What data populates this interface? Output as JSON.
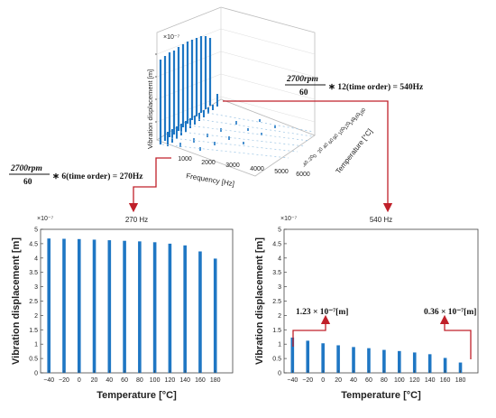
{
  "figure": {
    "waterfall_3d": {
      "scale_label": "×10⁻⁷",
      "zlabel": "Vibration displacement [m]",
      "xlabel": "Frequency [Hz]",
      "ylabel": "Temperature [°C]",
      "x_ticks": [
        "1000",
        "2000",
        "3000",
        "4000",
        "5000",
        "6000"
      ],
      "annotation_270": {
        "prefix": "2700rpm",
        "denominator": "60",
        "suffix": "∗ 6(time order) = 270Hz"
      },
      "annotation_540": {
        "prefix": "2700rpm",
        "denominator": "60",
        "suffix": "∗ 12(time order) = 540Hz"
      }
    },
    "arrow_color": "#c0202a",
    "bar_color": "#1f77c4",
    "annotations": {
      "left_peak": "1.23 × 10⁻⁷[m]",
      "right_peak": "0.36 × 10⁻⁷[m]"
    }
  },
  "chart_data": [
    {
      "type": "bar",
      "title": "270 Hz",
      "scale_label": "×10⁻⁷",
      "xlabel": "Temperature [°C]",
      "ylabel": "Vibration displacement [m]",
      "categories": [
        "-40",
        "-20",
        "0",
        "20",
        "40",
        "60",
        "80",
        "100",
        "120",
        "140",
        "160",
        "180"
      ],
      "values": [
        4.68,
        4.67,
        4.66,
        4.64,
        4.62,
        4.6,
        4.58,
        4.55,
        4.5,
        4.44,
        4.23,
        3.98
      ],
      "ylim": [
        0,
        5
      ],
      "yticks": [
        "0",
        "0.5",
        "1",
        "1.5",
        "2",
        "2.5",
        "3",
        "3.5",
        "4",
        "4.5",
        "5"
      ],
      "grid": false
    },
    {
      "type": "bar",
      "title": "540 Hz",
      "scale_label": "×10⁻⁷",
      "xlabel": "Temperature [°C]",
      "ylabel": "Vibration displacement [m]",
      "categories": [
        "-40",
        "-20",
        "0",
        "20",
        "40",
        "60",
        "80",
        "100",
        "120",
        "140",
        "160",
        "180"
      ],
      "values": [
        1.23,
        1.12,
        1.03,
        0.96,
        0.9,
        0.86,
        0.8,
        0.76,
        0.71,
        0.65,
        0.52,
        0.36
      ],
      "ylim": [
        0,
        5
      ],
      "yticks": [
        "0",
        "0.5",
        "1",
        "1.5",
        "2",
        "2.5",
        "3",
        "3.5",
        "4",
        "4.5",
        "5"
      ],
      "grid": false
    }
  ]
}
